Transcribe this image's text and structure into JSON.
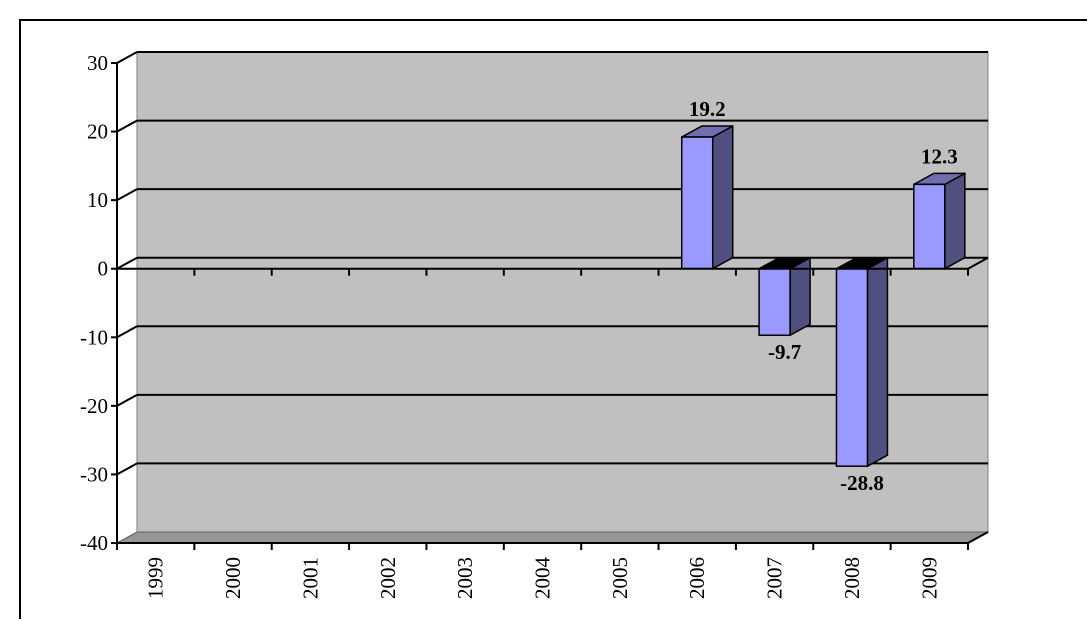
{
  "chart_data": {
    "type": "bar",
    "style": "3d-column",
    "title": "",
    "xlabel": "",
    "ylabel": "",
    "categories": [
      "1999",
      "2000",
      "2001",
      "2002",
      "2003",
      "2004",
      "2005",
      "2006",
      "2007",
      "2008",
      "2009"
    ],
    "values": [
      null,
      null,
      null,
      null,
      null,
      null,
      null,
      19.2,
      -9.7,
      -28.8,
      12.3
    ],
    "data_labels": [
      "",
      "",
      "",
      "",
      "",
      "",
      "",
      "19.2",
      "-9.7",
      "-28.8",
      "12.3"
    ],
    "ylim": [
      -40,
      30
    ],
    "yticks": [
      "30",
      "20",
      "10",
      "0",
      "-10",
      "-20",
      "-30",
      "-40"
    ],
    "grid": true,
    "legend": "none",
    "colors": {
      "bar_front": "#9999ff",
      "bar_side": "#4f4f80",
      "bar_top": "#6f6fb0",
      "wall": "#c0c0c0",
      "floor": "#969696",
      "gridline": "#000000"
    }
  }
}
